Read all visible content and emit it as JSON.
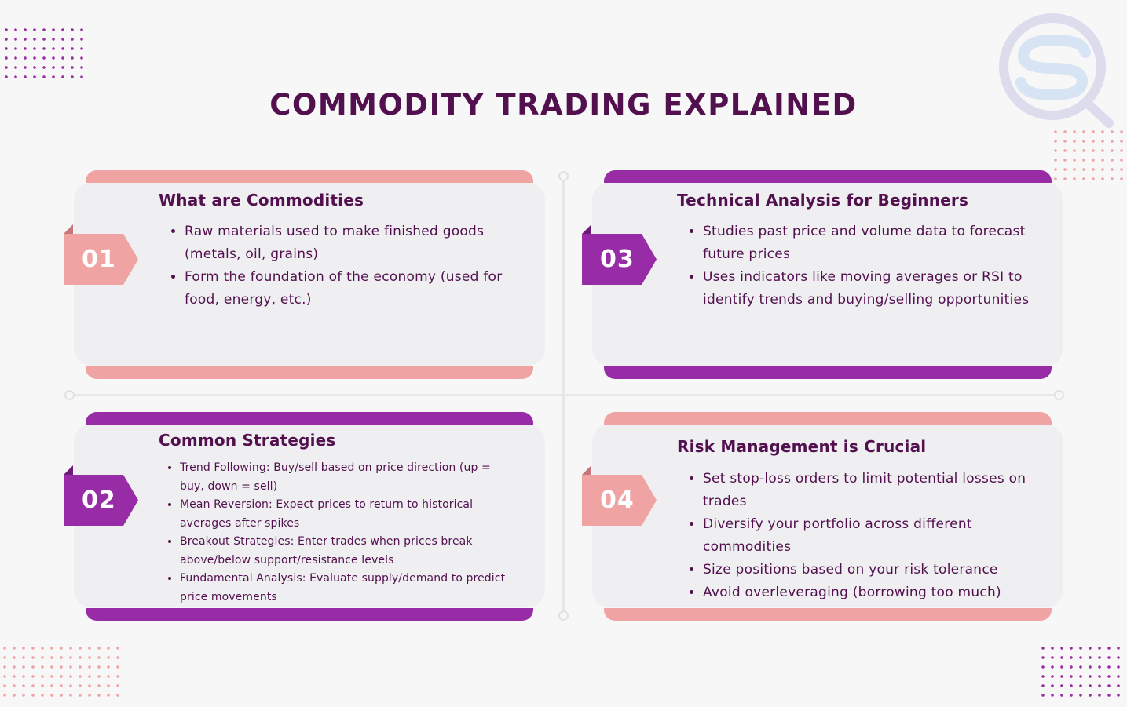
{
  "title": "COMMODITY TRADING EXPLAINED",
  "colors": {
    "title": "#52104f",
    "pink": "#f0a3a3",
    "purple": "#982ca6",
    "card": "#efeff1"
  },
  "logo": {
    "icon": "search-s-logo-icon"
  },
  "cards": [
    {
      "number": "01",
      "heading": "What are Commodities",
      "bullets": [
        "Raw materials used to make finished goods (metals, oil, grains)",
        "Form the foundation of the economy (used for food, energy, etc.)"
      ]
    },
    {
      "number": "02",
      "heading": "Common Strategies",
      "bullets": [
        "Trend Following: Buy/sell based on price direction (up = buy, down = sell)",
        "Mean Reversion: Expect prices to return to historical averages after spikes",
        "Breakout Strategies: Enter trades when prices break above/below support/resistance levels",
        "Fundamental Analysis: Evaluate supply/demand to predict price movements"
      ]
    },
    {
      "number": "03",
      "heading": "Technical Analysis for Beginners",
      "bullets": [
        "Studies past price and volume data to forecast future prices",
        "Uses indicators like moving averages or RSI to identify trends and buying/selling opportunities"
      ]
    },
    {
      "number": "04",
      "heading": "Risk Management is Crucial",
      "bullets": [
        "Set stop-loss orders to limit potential losses on trades",
        "Diversify your portfolio across different commodities",
        "Size positions based on your risk tolerance",
        "Avoid overleveraging (borrowing too much)"
      ]
    }
  ]
}
